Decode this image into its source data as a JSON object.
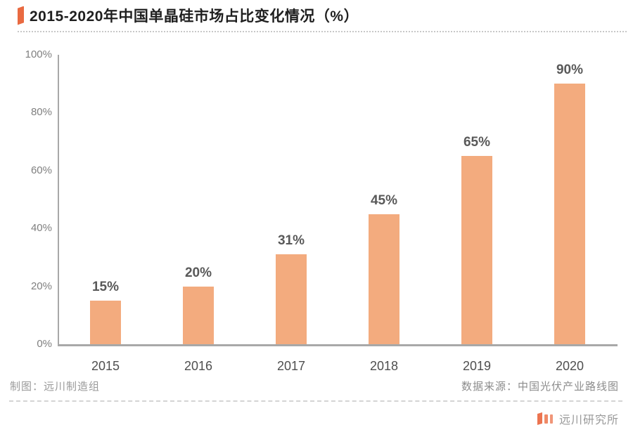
{
  "title": {
    "text": "2015-2020年中国单晶硅市场占比变化情况（%）"
  },
  "chart_data": {
    "type": "bar",
    "title": "2015-2020年中国单晶硅市场占比变化情况（%）",
    "categories": [
      "2015",
      "2016",
      "2017",
      "2018",
      "2019",
      "2020"
    ],
    "values": [
      15,
      20,
      31,
      45,
      65,
      90
    ],
    "value_labels": [
      "15%",
      "20%",
      "31%",
      "45%",
      "65%",
      "90%"
    ],
    "xlabel": "",
    "ylabel": "",
    "ylim": [
      0,
      100
    ],
    "ytick_labels_top_to_bottom": [
      "100%",
      "80%",
      "60%",
      "40%",
      "20%",
      "0%"
    ],
    "grid": false,
    "legend": "none",
    "bar_color": "#F3AB7E"
  },
  "footer": {
    "credit_left": "制图：远川制造组",
    "source_right": "数据来源：中国光伏产业路线图",
    "brand_name": "远川研究所"
  },
  "colors": {
    "accent_orange": "#E96A41",
    "bar_fill": "#F3AB7E",
    "axis_gray": "#a8a8a8",
    "title_text": "#1f1f1f",
    "label_gray": "#595959"
  }
}
